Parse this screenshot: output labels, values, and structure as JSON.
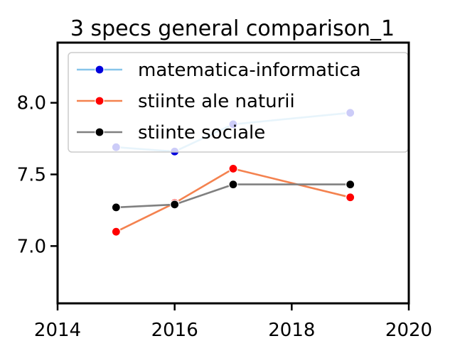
{
  "chart_data": {
    "type": "line",
    "title": "3 specs general comparison_1",
    "xlabel": "",
    "ylabel": "",
    "xlim": [
      2014,
      2020
    ],
    "ylim": [
      6.6,
      8.42
    ],
    "xticks": [
      2014,
      2016,
      2018,
      2020
    ],
    "yticks": [
      7.0,
      7.5,
      8.0
    ],
    "ytick_labels": [
      "7.0",
      "7.5",
      "8.0"
    ],
    "grid": false,
    "legend_position": "upper right",
    "series": [
      {
        "name": "matematica-informatica",
        "color": "#87c5ea",
        "marker_color": "#0000dd",
        "x": [
          2015,
          2016,
          2017,
          2019
        ],
        "values": [
          7.69,
          7.66,
          7.85,
          7.93
        ]
      },
      {
        "name": "stiinte ale naturii",
        "color": "#f4824f",
        "marker_color": "#ff0000",
        "x": [
          2015,
          2016,
          2017,
          2019
        ],
        "values": [
          7.1,
          7.3,
          7.54,
          7.34
        ]
      },
      {
        "name": "stiinte sociale",
        "color": "#808080",
        "marker_color": "#000000",
        "x": [
          2015,
          2016,
          2017,
          2019
        ],
        "values": [
          7.27,
          7.29,
          7.43,
          7.43
        ]
      }
    ]
  }
}
